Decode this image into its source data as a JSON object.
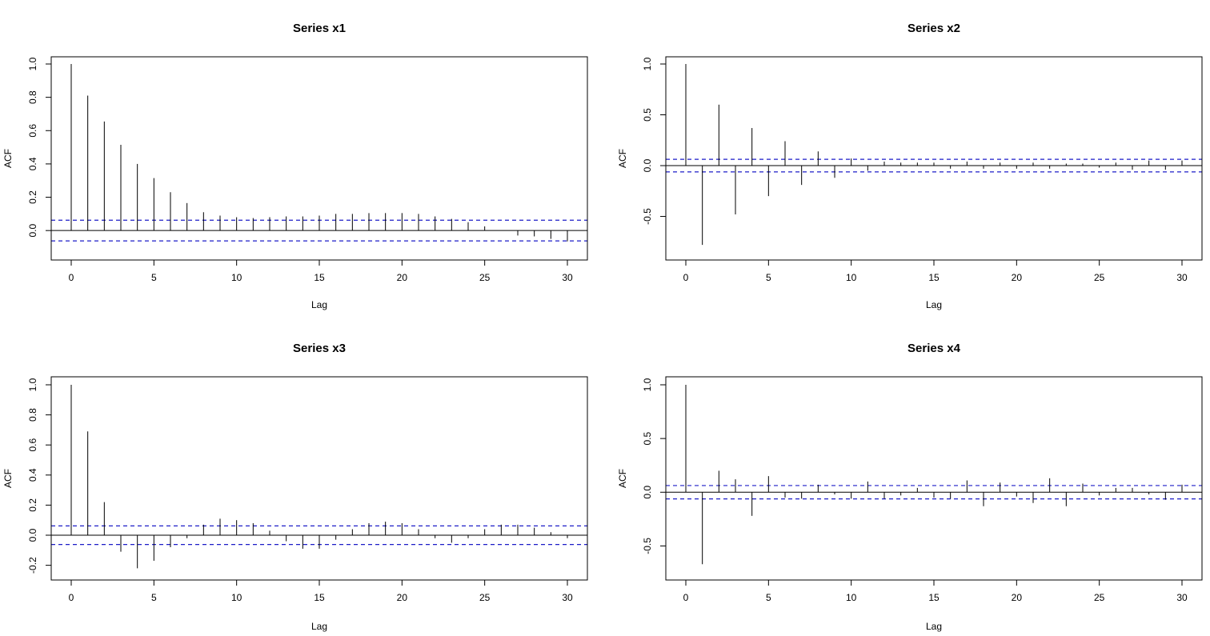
{
  "chart_data": [
    {
      "type": "bar",
      "title": "Series  x1",
      "xlabel": "Lag",
      "ylabel": "ACF",
      "xlim": [
        0,
        30
      ],
      "ylim": [
        -0.1,
        1.0
      ],
      "x_ticks": [
        "0",
        "5",
        "10",
        "15",
        "20",
        "25",
        "30"
      ],
      "y_ticks": [
        "0.0",
        "0.2",
        "0.4",
        "0.6",
        "0.8",
        "1.0"
      ],
      "ci": 0.062,
      "lags": [
        0,
        1,
        2,
        3,
        4,
        5,
        6,
        7,
        8,
        9,
        10,
        11,
        12,
        13,
        14,
        15,
        16,
        17,
        18,
        19,
        20,
        21,
        22,
        23,
        24,
        25,
        26,
        27,
        28,
        29,
        30
      ],
      "values": [
        1.0,
        0.81,
        0.655,
        0.515,
        0.4,
        0.315,
        0.23,
        0.165,
        0.11,
        0.09,
        0.08,
        0.075,
        0.08,
        0.085,
        0.085,
        0.09,
        0.1,
        0.1,
        0.105,
        0.105,
        0.105,
        0.1,
        0.085,
        0.07,
        0.05,
        0.025,
        0.0,
        -0.03,
        -0.035,
        -0.05,
        -0.065
      ]
    },
    {
      "type": "bar",
      "title": "Series  x2",
      "xlabel": "Lag",
      "ylabel": "ACF",
      "xlim": [
        0,
        30
      ],
      "ylim": [
        -0.85,
        1.0
      ],
      "x_ticks": [
        "0",
        "5",
        "10",
        "15",
        "20",
        "25",
        "30"
      ],
      "y_ticks": [
        "-0.5",
        "0.0",
        "0.5",
        "1.0"
      ],
      "ci": 0.062,
      "lags": [
        0,
        1,
        2,
        3,
        4,
        5,
        6,
        7,
        8,
        9,
        10,
        11,
        12,
        13,
        14,
        15,
        16,
        17,
        18,
        19,
        20,
        21,
        22,
        23,
        24,
        25,
        26,
        27,
        28,
        29,
        30
      ],
      "values": [
        1.0,
        -0.78,
        0.6,
        -0.48,
        0.37,
        -0.3,
        0.24,
        -0.19,
        0.14,
        -0.12,
        0.07,
        -0.05,
        0.04,
        0.03,
        0.03,
        0.03,
        -0.03,
        0.04,
        -0.03,
        0.03,
        -0.03,
        0.03,
        -0.03,
        0.02,
        0.02,
        -0.02,
        0.03,
        -0.04,
        0.05,
        -0.04,
        0.05
      ]
    },
    {
      "type": "bar",
      "title": "Series  x3",
      "xlabel": "Lag",
      "ylabel": "ACF",
      "xlim": [
        0,
        30
      ],
      "ylim": [
        -0.25,
        1.0
      ],
      "x_ticks": [
        "0",
        "5",
        "10",
        "15",
        "20",
        "25",
        "30"
      ],
      "y_ticks": [
        "-0.2",
        "0.0",
        "0.2",
        "0.4",
        "0.6",
        "0.8",
        "1.0"
      ],
      "ci": 0.062,
      "lags": [
        0,
        1,
        2,
        3,
        4,
        5,
        6,
        7,
        8,
        9,
        10,
        11,
        12,
        13,
        14,
        15,
        16,
        17,
        18,
        19,
        20,
        21,
        22,
        23,
        24,
        25,
        26,
        27,
        28,
        29,
        30
      ],
      "values": [
        1.0,
        0.69,
        0.22,
        -0.11,
        -0.22,
        -0.17,
        -0.08,
        -0.02,
        0.07,
        0.11,
        0.1,
        0.08,
        0.03,
        -0.04,
        -0.09,
        -0.09,
        -0.03,
        0.04,
        0.08,
        0.09,
        0.08,
        0.04,
        -0.02,
        -0.05,
        -0.02,
        0.04,
        0.07,
        0.07,
        0.05,
        0.02,
        -0.02
      ]
    },
    {
      "type": "bar",
      "title": "Series  x4",
      "xlabel": "Lag",
      "ylabel": "ACF",
      "xlim": [
        0,
        30
      ],
      "ylim": [
        -0.75,
        1.0
      ],
      "x_ticks": [
        "0",
        "5",
        "10",
        "15",
        "20",
        "25",
        "30"
      ],
      "y_ticks": [
        "-0.5",
        "0.0",
        "0.5",
        "1.0"
      ],
      "ci": 0.062,
      "lags": [
        0,
        1,
        2,
        3,
        4,
        5,
        6,
        7,
        8,
        9,
        10,
        11,
        12,
        13,
        14,
        15,
        16,
        17,
        18,
        19,
        20,
        21,
        22,
        23,
        24,
        25,
        26,
        27,
        28,
        29,
        30
      ],
      "values": [
        1.0,
        -0.67,
        0.2,
        0.12,
        -0.22,
        0.15,
        -0.05,
        -0.06,
        0.07,
        -0.02,
        -0.06,
        0.1,
        -0.06,
        -0.03,
        0.04,
        -0.05,
        -0.06,
        0.11,
        -0.13,
        0.09,
        -0.04,
        -0.1,
        0.13,
        -0.13,
        0.08,
        -0.03,
        0.04,
        0.04,
        -0.02,
        -0.07,
        0.07
      ]
    }
  ]
}
